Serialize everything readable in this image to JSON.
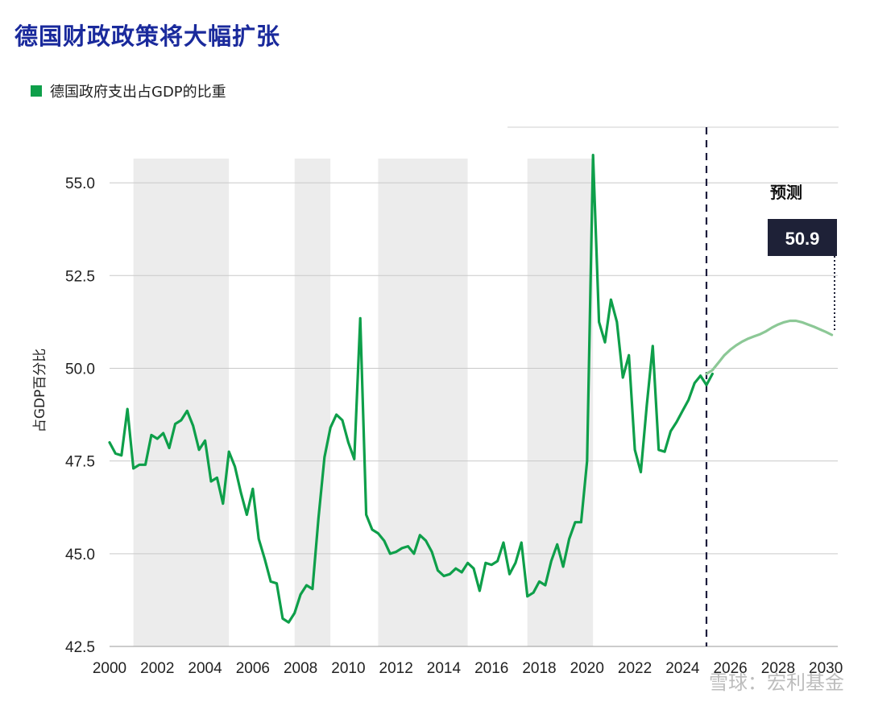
{
  "chart_data": {
    "type": "line",
    "title": "德国财政政策将大幅扩张",
    "ylabel": "占GDP百分比",
    "ylim": [
      42.5,
      56.5
    ],
    "xlim": [
      2000,
      2030.5
    ],
    "y_ticks": [
      42.5,
      45.0,
      47.5,
      50.0,
      52.5,
      55.0
    ],
    "x_ticks": [
      "2000",
      "2002",
      "2004",
      "2006",
      "2008",
      "2010",
      "2012",
      "2014",
      "2016",
      "2018",
      "2020",
      "2022",
      "2024",
      "2026",
      "2028",
      "2030"
    ],
    "grid": "horizontal",
    "legend": {
      "position": "top-left",
      "label": "德国政府支出占GDP的比重",
      "color": "#0e9f4a"
    },
    "shaded_periods": [
      [
        2001.0,
        2005.0
      ],
      [
        2007.75,
        2009.25
      ],
      [
        2011.25,
        2015.0
      ],
      [
        2017.5,
        2020.25
      ]
    ],
    "forecast_start": 2025.0,
    "forecast_label": "预测",
    "forecast_value_label": "50.9",
    "series": [
      {
        "color": "#0e9f4a",
        "points": [
          [
            2000.0,
            48.0
          ],
          [
            2000.25,
            47.7
          ],
          [
            2000.5,
            47.65
          ],
          [
            2000.75,
            48.9
          ],
          [
            2001.0,
            47.3
          ],
          [
            2001.25,
            47.4
          ],
          [
            2001.5,
            47.4
          ],
          [
            2001.75,
            48.2
          ],
          [
            2002.0,
            48.1
          ],
          [
            2002.25,
            48.25
          ],
          [
            2002.5,
            47.85
          ],
          [
            2002.75,
            48.5
          ],
          [
            2003.0,
            48.6
          ],
          [
            2003.25,
            48.85
          ],
          [
            2003.5,
            48.45
          ],
          [
            2003.75,
            47.8
          ],
          [
            2004.0,
            48.05
          ],
          [
            2004.25,
            46.95
          ],
          [
            2004.5,
            47.05
          ],
          [
            2004.75,
            46.35
          ],
          [
            2005.0,
            47.75
          ],
          [
            2005.25,
            47.35
          ],
          [
            2005.5,
            46.65
          ],
          [
            2005.75,
            46.05
          ],
          [
            2006.0,
            46.75
          ],
          [
            2006.25,
            45.4
          ],
          [
            2006.5,
            44.85
          ],
          [
            2006.75,
            44.25
          ],
          [
            2007.0,
            44.2
          ],
          [
            2007.25,
            43.25
          ],
          [
            2007.5,
            43.15
          ],
          [
            2007.75,
            43.4
          ],
          [
            2008.0,
            43.9
          ],
          [
            2008.25,
            44.15
          ],
          [
            2008.5,
            44.05
          ],
          [
            2008.75,
            45.95
          ],
          [
            2009.0,
            47.6
          ],
          [
            2009.25,
            48.4
          ],
          [
            2009.5,
            48.75
          ],
          [
            2009.75,
            48.6
          ],
          [
            2010.0,
            48.0
          ],
          [
            2010.25,
            47.55
          ],
          [
            2010.5,
            51.35
          ],
          [
            2010.75,
            46.05
          ],
          [
            2011.0,
            45.65
          ],
          [
            2011.25,
            45.55
          ],
          [
            2011.5,
            45.35
          ],
          [
            2011.75,
            45.0
          ],
          [
            2012.0,
            45.05
          ],
          [
            2012.25,
            45.15
          ],
          [
            2012.5,
            45.2
          ],
          [
            2012.75,
            45.0
          ],
          [
            2013.0,
            45.5
          ],
          [
            2013.25,
            45.35
          ],
          [
            2013.5,
            45.05
          ],
          [
            2013.75,
            44.55
          ],
          [
            2014.0,
            44.4
          ],
          [
            2014.25,
            44.45
          ],
          [
            2014.5,
            44.6
          ],
          [
            2014.75,
            44.5
          ],
          [
            2015.0,
            44.75
          ],
          [
            2015.25,
            44.6
          ],
          [
            2015.5,
            44.0
          ],
          [
            2015.75,
            44.75
          ],
          [
            2016.0,
            44.7
          ],
          [
            2016.25,
            44.8
          ],
          [
            2016.5,
            45.3
          ],
          [
            2016.75,
            44.45
          ],
          [
            2017.0,
            44.75
          ],
          [
            2017.25,
            45.3
          ],
          [
            2017.5,
            43.85
          ],
          [
            2017.75,
            43.95
          ],
          [
            2018.0,
            44.25
          ],
          [
            2018.25,
            44.15
          ],
          [
            2018.5,
            44.8
          ],
          [
            2018.75,
            45.25
          ],
          [
            2019.0,
            44.65
          ],
          [
            2019.25,
            45.4
          ],
          [
            2019.5,
            45.85
          ],
          [
            2019.75,
            45.85
          ],
          [
            2020.0,
            47.5
          ],
          [
            2020.25,
            55.75
          ],
          [
            2020.5,
            51.25
          ],
          [
            2020.75,
            50.7
          ],
          [
            2021.0,
            51.85
          ],
          [
            2021.25,
            51.25
          ],
          [
            2021.5,
            49.75
          ],
          [
            2021.75,
            50.35
          ],
          [
            2022.0,
            47.8
          ],
          [
            2022.25,
            47.2
          ],
          [
            2022.5,
            49.0
          ],
          [
            2022.75,
            50.6
          ],
          [
            2023.0,
            47.8
          ],
          [
            2023.25,
            47.75
          ],
          [
            2023.5,
            48.3
          ],
          [
            2023.75,
            48.55
          ],
          [
            2024.0,
            48.85
          ],
          [
            2024.25,
            49.15
          ],
          [
            2024.5,
            49.6
          ],
          [
            2024.75,
            49.8
          ],
          [
            2025.0,
            49.55
          ],
          [
            2025.25,
            49.85
          ]
        ]
      },
      {
        "color": "#8cc896",
        "points": [
          [
            2025.0,
            49.85
          ],
          [
            2025.25,
            49.95
          ],
          [
            2025.5,
            50.15
          ],
          [
            2025.75,
            50.35
          ],
          [
            2026.0,
            50.5
          ],
          [
            2026.25,
            50.62
          ],
          [
            2026.5,
            50.72
          ],
          [
            2026.75,
            50.8
          ],
          [
            2027.0,
            50.86
          ],
          [
            2027.25,
            50.92
          ],
          [
            2027.5,
            51.0
          ],
          [
            2027.75,
            51.1
          ],
          [
            2028.0,
            51.18
          ],
          [
            2028.25,
            51.24
          ],
          [
            2028.5,
            51.28
          ],
          [
            2028.75,
            51.28
          ],
          [
            2029.0,
            51.24
          ],
          [
            2029.25,
            51.18
          ],
          [
            2029.5,
            51.12
          ],
          [
            2029.75,
            51.05
          ],
          [
            2030.0,
            50.98
          ],
          [
            2030.25,
            50.9
          ]
        ]
      }
    ]
  },
  "watermark": "雪球：宏利基金"
}
